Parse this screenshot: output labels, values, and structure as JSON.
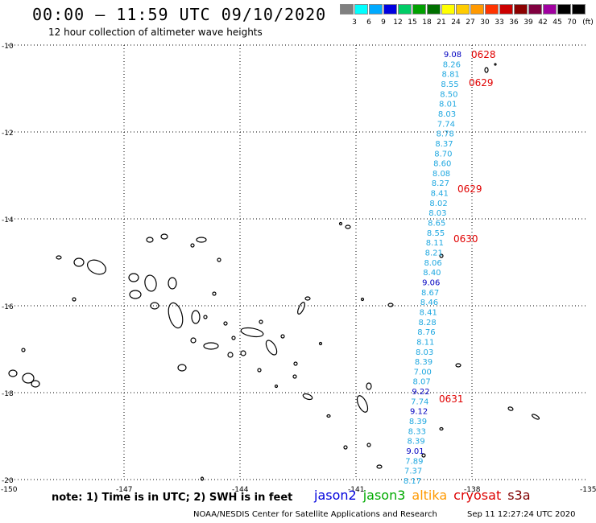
{
  "header": {
    "title": "00:00 – 11:59 UTC 09/10/2020",
    "subtitle": "12 hour collection of altimeter wave heights"
  },
  "legend": {
    "unit": "(ft)",
    "levels": [
      "3",
      "6",
      "9",
      "12",
      "15",
      "18",
      "21",
      "24",
      "27",
      "30",
      "33",
      "36",
      "39",
      "42",
      "45",
      "70"
    ],
    "colors": [
      "#808080",
      "#00ffff",
      "#00aaff",
      "#0000e0",
      "#00cc66",
      "#00a000",
      "#007000",
      "#ffff00",
      "#ffcc00",
      "#ff9900",
      "#ff3300",
      "#cc0000",
      "#8b0000",
      "#800040",
      "#a000a0",
      "#000000",
      "#000000"
    ]
  },
  "axes": {
    "lon_ticks": [
      "-150",
      "-147",
      "-144",
      "-141",
      "-138",
      "-135"
    ],
    "lat_ticks": [
      "-10",
      "-12",
      "-14",
      "-16",
      "-18",
      "-20"
    ]
  },
  "track": {
    "color_light": "#20a8e0",
    "color_dark": "#0000c0",
    "values": [
      "9.08",
      "8.26",
      "8.81",
      "8.55",
      "8.50",
      "8.01",
      "8.03",
      "7.74",
      "8.78",
      "8.37",
      "8.70",
      "8.60",
      "8.08",
      "8.27",
      "8.41",
      "8.02",
      "8.03",
      "8.65",
      "8.55",
      "8.11",
      "8.21",
      "8.06",
      "8.40",
      "9.06",
      "8.67",
      "8.46",
      "8.41",
      "8.28",
      "8.76",
      "8.11",
      "8.03",
      "8.39",
      "7.00",
      "8.07",
      "9.22",
      "7.74",
      "9.12",
      "8.39",
      "8.33",
      "8.39",
      "9.01",
      "7.89",
      "7.37",
      "8.17"
    ],
    "dark_indices": [
      0,
      23,
      34,
      36,
      40
    ],
    "time_labels": [
      "0628",
      "0629",
      "0629",
      "0630",
      "0631"
    ]
  },
  "footer": {
    "note": "note:  1) Time is in UTC;  2) SWH is in feet",
    "satellites": [
      {
        "name": "jason2",
        "color": "#0000dd"
      },
      {
        "name": "jason3",
        "color": "#00aa00"
      },
      {
        "name": "altika",
        "color": "#ff9900"
      },
      {
        "name": "cryosat",
        "color": "#dd0000"
      },
      {
        "name": "s3a",
        "color": "#800000"
      }
    ],
    "credit": "NOAA/NESDIS Center for Satellite Applications and Research",
    "timestamp": "Sep 11 12:27:24 UTC 2020"
  }
}
